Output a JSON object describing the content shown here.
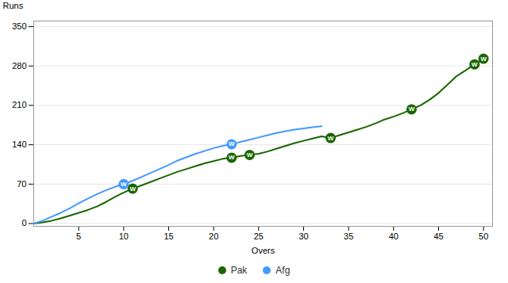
{
  "chart_data": {
    "type": "line",
    "xlabel": "Overs",
    "ylabel": "Runs",
    "xlim": [
      0,
      51
    ],
    "xticks": [
      5,
      10,
      15,
      20,
      25,
      30,
      35,
      40,
      45,
      50
    ],
    "ylim": [
      -5,
      360
    ],
    "yticks": [
      0,
      70,
      140,
      210,
      280,
      350
    ],
    "grid": "y",
    "legend": "bottom",
    "marker": "o",
    "series": [
      {
        "name": "Pak",
        "color": "#1a6600",
        "x": [
          0,
          1,
          2,
          3,
          4,
          5,
          6,
          7,
          8,
          9,
          10,
          11,
          12,
          13,
          14,
          15,
          16,
          17,
          18,
          19,
          20,
          21,
          22,
          23,
          24,
          25,
          26,
          27,
          28,
          29,
          30,
          31,
          32,
          33,
          34,
          35,
          36,
          37,
          38,
          39,
          40,
          41,
          42,
          43,
          44,
          45,
          46,
          47,
          48,
          49,
          50
        ],
        "values": [
          0,
          2,
          5,
          9,
          14,
          19,
          24,
          30,
          38,
          47,
          55,
          62,
          68,
          74,
          80,
          86,
          92,
          97,
          102,
          107,
          111,
          115,
          117,
          120,
          122,
          124,
          128,
          133,
          138,
          143,
          147,
          151,
          155,
          152,
          157,
          162,
          167,
          172,
          178,
          185,
          190,
          196,
          203,
          210,
          220,
          232,
          247,
          262,
          272,
          283,
          293
        ],
        "wickets": {
          "label": "W",
          "x": [
            11,
            22,
            24,
            33,
            42,
            49,
            50
          ],
          "values": [
            62,
            117,
            122,
            152,
            203,
            283,
            293
          ]
        }
      },
      {
        "name": "Afg",
        "color": "#4499ff",
        "x": [
          0,
          1,
          2,
          3,
          4,
          5,
          6,
          7,
          8,
          9,
          10,
          11,
          12,
          13,
          14,
          15,
          16,
          17,
          18,
          19,
          20,
          21,
          22,
          23,
          24,
          25,
          26,
          27,
          28,
          29,
          30,
          31,
          32
        ],
        "values": [
          0,
          5,
          12,
          19,
          27,
          36,
          44,
          52,
          59,
          65,
          70,
          76,
          83,
          90,
          97,
          104,
          112,
          118,
          124,
          129,
          134,
          138,
          141,
          145,
          149,
          153,
          157,
          161,
          164,
          167,
          169,
          171,
          173
        ],
        "wickets": {
          "label": "W",
          "x": [
            10,
            22
          ],
          "values": [
            70,
            141
          ]
        }
      }
    ]
  }
}
